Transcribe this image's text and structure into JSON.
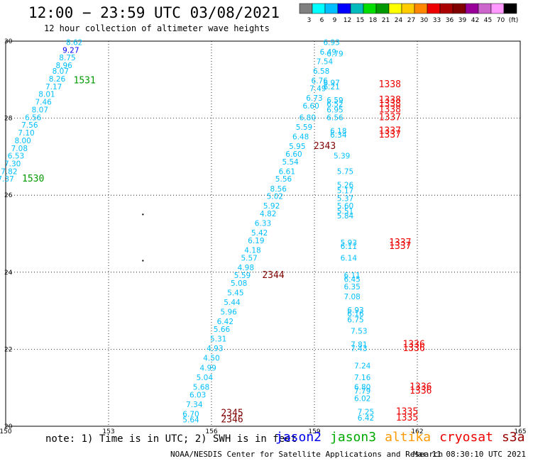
{
  "title": "12:00 − 23:59 UTC 03/08/2021",
  "subtitle": "12 hour collection of altimeter wave heights",
  "note": "note: 1) Time is in UTC; 2) SWH is in feet",
  "credit": "NOAA/NESDIS Center for Satellite Applications and Research",
  "timestamp": "Mar 11 08:30:10 UTC 2021",
  "satellites": [
    {
      "name": "jason2",
      "color": "#0000ee"
    },
    {
      "name": "jason3",
      "color": "#00aa00"
    },
    {
      "name": "altika",
      "color": "#ff9900"
    },
    {
      "name": "cryosat",
      "color": "#ee0000"
    },
    {
      "name": "s3a",
      "color": "#990000"
    }
  ],
  "legend": {
    "colors": [
      "#808080",
      "#00ffff",
      "#00bfff",
      "#0000ff",
      "#00bbbb",
      "#00dd00",
      "#009900",
      "#ffff00",
      "#ffcc00",
      "#ff8800",
      "#ee0000",
      "#aa0000",
      "#800000",
      "#990099",
      "#cc66cc",
      "#ff99ff",
      "#000000"
    ],
    "labels": [
      "3",
      "6",
      "9",
      "12",
      "15",
      "18",
      "21",
      "24",
      "27",
      "30",
      "33",
      "36",
      "39",
      "42",
      "45",
      "70",
      "(ft)"
    ]
  },
  "chart_data": {
    "type": "scatter",
    "xlabel": "",
    "ylabel": "",
    "xlim": [
      150,
      165
    ],
    "ylim": [
      20,
      30
    ],
    "xticks": [
      "150",
      "153",
      "156",
      "159",
      "162",
      "165"
    ],
    "yticks": [
      "20",
      "22",
      "24",
      "26",
      "28",
      "30"
    ],
    "grid": true,
    "swh_points": [
      {
        "x": 152.0,
        "y": 29.9,
        "v": "8.62",
        "c": "#00bfff"
      },
      {
        "x": 151.9,
        "y": 29.7,
        "v": "9.27",
        "c": "#0000ff"
      },
      {
        "x": 151.8,
        "y": 29.5,
        "v": "8.75",
        "c": "#00bfff"
      },
      {
        "x": 151.7,
        "y": 29.3,
        "v": "8.96",
        "c": "#00bfff"
      },
      {
        "x": 151.6,
        "y": 29.15,
        "v": "8.07",
        "c": "#00bfff"
      },
      {
        "x": 151.5,
        "y": 28.95,
        "v": "8.26",
        "c": "#00bfff"
      },
      {
        "x": 151.4,
        "y": 28.75,
        "v": "7.17",
        "c": "#00bfff"
      },
      {
        "x": 151.2,
        "y": 28.55,
        "v": "8.01",
        "c": "#00bfff"
      },
      {
        "x": 151.1,
        "y": 28.35,
        "v": "7.46",
        "c": "#00bfff"
      },
      {
        "x": 151.0,
        "y": 28.15,
        "v": "8.07",
        "c": "#00bfff"
      },
      {
        "x": 150.8,
        "y": 27.95,
        "v": "6.56",
        "c": "#00bfff"
      },
      {
        "x": 150.7,
        "y": 27.75,
        "v": "7.56",
        "c": "#00bfff"
      },
      {
        "x": 150.6,
        "y": 27.55,
        "v": "7.10",
        "c": "#00bfff"
      },
      {
        "x": 150.5,
        "y": 27.35,
        "v": "8.00",
        "c": "#00bfff"
      },
      {
        "x": 150.4,
        "y": 27.15,
        "v": "7.08",
        "c": "#00bfff"
      },
      {
        "x": 150.3,
        "y": 26.95,
        "v": "6.53",
        "c": "#00bfff"
      },
      {
        "x": 150.2,
        "y": 26.75,
        "v": "7.30",
        "c": "#00bfff"
      },
      {
        "x": 150.1,
        "y": 26.55,
        "v": "7.82",
        "c": "#00bfff"
      },
      {
        "x": 150.0,
        "y": 26.35,
        "v": "7.37",
        "c": "#00bfff"
      },
      {
        "x": 159.5,
        "y": 29.9,
        "v": "6.93",
        "c": "#00bfff"
      },
      {
        "x": 159.4,
        "y": 29.65,
        "v": "6.49",
        "c": "#00bfff"
      },
      {
        "x": 159.6,
        "y": 29.6,
        "v": "6.79",
        "c": "#00bfff"
      },
      {
        "x": 159.3,
        "y": 29.4,
        "v": "7.54",
        "c": "#00bfff"
      },
      {
        "x": 159.2,
        "y": 29.15,
        "v": "6.58",
        "c": "#00bfff"
      },
      {
        "x": 159.15,
        "y": 28.9,
        "v": "6.76",
        "c": "#00bfff"
      },
      {
        "x": 159.5,
        "y": 28.85,
        "v": "6.97",
        "c": "#00bfff"
      },
      {
        "x": 159.5,
        "y": 28.75,
        "v": "6.21",
        "c": "#00bfff"
      },
      {
        "x": 159.1,
        "y": 28.7,
        "v": "7.49",
        "c": "#00bfff"
      },
      {
        "x": 159.0,
        "y": 28.45,
        "v": "6.73",
        "c": "#00bfff"
      },
      {
        "x": 159.6,
        "y": 28.4,
        "v": "6.59",
        "c": "#00bfff"
      },
      {
        "x": 159.6,
        "y": 28.3,
        "v": "6.52",
        "c": "#00bfff"
      },
      {
        "x": 158.9,
        "y": 28.25,
        "v": "6.60",
        "c": "#00bfff"
      },
      {
        "x": 159.6,
        "y": 28.15,
        "v": "6.95",
        "c": "#00bfff"
      },
      {
        "x": 158.8,
        "y": 27.95,
        "v": "6.80",
        "c": "#00bfff"
      },
      {
        "x": 159.6,
        "y": 27.95,
        "v": "6.56",
        "c": "#00bfff"
      },
      {
        "x": 158.7,
        "y": 27.7,
        "v": "5.59",
        "c": "#00bfff"
      },
      {
        "x": 159.7,
        "y": 27.6,
        "v": "6.18",
        "c": "#00bfff"
      },
      {
        "x": 159.7,
        "y": 27.5,
        "v": "6.34",
        "c": "#00bfff"
      },
      {
        "x": 158.6,
        "y": 27.45,
        "v": "6.48",
        "c": "#00bfff"
      },
      {
        "x": 158.5,
        "y": 27.2,
        "v": "5.95",
        "c": "#00bfff"
      },
      {
        "x": 158.4,
        "y": 27.0,
        "v": "6.60",
        "c": "#00bfff"
      },
      {
        "x": 159.8,
        "y": 26.95,
        "v": "5.39",
        "c": "#00bfff"
      },
      {
        "x": 158.3,
        "y": 26.8,
        "v": "5.54",
        "c": "#00bfff"
      },
      {
        "x": 158.2,
        "y": 26.55,
        "v": "6.61",
        "c": "#00bfff"
      },
      {
        "x": 159.9,
        "y": 26.55,
        "v": "5.75",
        "c": "#00bfff"
      },
      {
        "x": 158.1,
        "y": 26.35,
        "v": "5.56",
        "c": "#00bfff"
      },
      {
        "x": 157.95,
        "y": 26.1,
        "v": "8.56",
        "c": "#00bfff"
      },
      {
        "x": 159.9,
        "y": 26.2,
        "v": "5.26",
        "c": "#00bfff"
      },
      {
        "x": 159.9,
        "y": 26.05,
        "v": "5.17",
        "c": "#00bfff"
      },
      {
        "x": 157.85,
        "y": 25.9,
        "v": "5.02",
        "c": "#00bfff"
      },
      {
        "x": 159.9,
        "y": 25.85,
        "v": "5.37",
        "c": "#00bfff"
      },
      {
        "x": 157.75,
        "y": 25.65,
        "v": "5.92",
        "c": "#00bfff"
      },
      {
        "x": 159.9,
        "y": 25.65,
        "v": "5.60",
        "c": "#00bfff"
      },
      {
        "x": 159.9,
        "y": 25.52,
        "v": "5.51",
        "c": "#00bfff"
      },
      {
        "x": 157.65,
        "y": 25.45,
        "v": "4.82",
        "c": "#00bfff"
      },
      {
        "x": 159.9,
        "y": 25.4,
        "v": "5.84",
        "c": "#00bfff"
      },
      {
        "x": 157.5,
        "y": 25.2,
        "v": "6.33",
        "c": "#00bfff"
      },
      {
        "x": 157.4,
        "y": 24.95,
        "v": "5.42",
        "c": "#00bfff"
      },
      {
        "x": 157.3,
        "y": 24.75,
        "v": "6.19",
        "c": "#00bfff"
      },
      {
        "x": 160.0,
        "y": 24.7,
        "v": "5.93",
        "c": "#00bfff"
      },
      {
        "x": 160.0,
        "y": 24.6,
        "v": "6.11",
        "c": "#00bfff"
      },
      {
        "x": 157.2,
        "y": 24.5,
        "v": "4.18",
        "c": "#00bfff"
      },
      {
        "x": 157.1,
        "y": 24.3,
        "v": "5.57",
        "c": "#00bfff"
      },
      {
        "x": 160.0,
        "y": 24.3,
        "v": "6.14",
        "c": "#00bfff"
      },
      {
        "x": 157.0,
        "y": 24.05,
        "v": "4.98",
        "c": "#00bfff"
      },
      {
        "x": 160.1,
        "y": 23.85,
        "v": "6.11",
        "c": "#00bfff"
      },
      {
        "x": 156.9,
        "y": 23.85,
        "v": "5.59",
        "c": "#00bfff"
      },
      {
        "x": 160.1,
        "y": 23.75,
        "v": "6.45",
        "c": "#00bfff"
      },
      {
        "x": 156.8,
        "y": 23.65,
        "v": "5.08",
        "c": "#00bfff"
      },
      {
        "x": 160.1,
        "y": 23.55,
        "v": "6.35",
        "c": "#00bfff"
      },
      {
        "x": 156.7,
        "y": 23.4,
        "v": "5.45",
        "c": "#00bfff"
      },
      {
        "x": 160.1,
        "y": 23.3,
        "v": "7.08",
        "c": "#00bfff"
      },
      {
        "x": 156.6,
        "y": 23.15,
        "v": "5.44",
        "c": "#00bfff"
      },
      {
        "x": 160.2,
        "y": 22.95,
        "v": "6.93",
        "c": "#00bfff"
      },
      {
        "x": 156.5,
        "y": 22.9,
        "v": "5.96",
        "c": "#00bfff"
      },
      {
        "x": 160.2,
        "y": 22.85,
        "v": "6.16",
        "c": "#00bfff"
      },
      {
        "x": 160.2,
        "y": 22.7,
        "v": "6.75",
        "c": "#00bfff"
      },
      {
        "x": 156.4,
        "y": 22.65,
        "v": "6.42",
        "c": "#00bfff"
      },
      {
        "x": 156.3,
        "y": 22.45,
        "v": "5.66",
        "c": "#00bfff"
      },
      {
        "x": 160.3,
        "y": 22.4,
        "v": "7.53",
        "c": "#00bfff"
      },
      {
        "x": 156.2,
        "y": 22.2,
        "v": "5.31",
        "c": "#00bfff"
      },
      {
        "x": 160.3,
        "y": 22.05,
        "v": "7.81",
        "c": "#00bfff"
      },
      {
        "x": 156.1,
        "y": 21.95,
        "v": "4.93",
        "c": "#00bfff"
      },
      {
        "x": 160.3,
        "y": 21.95,
        "v": "7.43",
        "c": "#00bfff"
      },
      {
        "x": 156.0,
        "y": 21.7,
        "v": "4.50",
        "c": "#00bfff"
      },
      {
        "x": 160.4,
        "y": 21.5,
        "v": "7.24",
        "c": "#00bfff"
      },
      {
        "x": 155.9,
        "y": 21.45,
        "v": "4.99",
        "c": "#00bfff"
      },
      {
        "x": 160.4,
        "y": 21.2,
        "v": "7.16",
        "c": "#00bfff"
      },
      {
        "x": 155.8,
        "y": 21.2,
        "v": "5.04",
        "c": "#00bfff"
      },
      {
        "x": 160.4,
        "y": 20.95,
        "v": "6.80",
        "c": "#00bfff"
      },
      {
        "x": 155.7,
        "y": 20.95,
        "v": "5.68",
        "c": "#00bfff"
      },
      {
        "x": 160.4,
        "y": 20.85,
        "v": "7.79",
        "c": "#00bfff"
      },
      {
        "x": 155.6,
        "y": 20.75,
        "v": "6.03",
        "c": "#00bfff"
      },
      {
        "x": 160.4,
        "y": 20.65,
        "v": "6.02",
        "c": "#00bfff"
      },
      {
        "x": 155.5,
        "y": 20.5,
        "v": "7.34",
        "c": "#00bfff"
      },
      {
        "x": 155.4,
        "y": 20.25,
        "v": "6.70",
        "c": "#00bfff"
      },
      {
        "x": 160.5,
        "y": 20.3,
        "v": "7.25",
        "c": "#00bfff"
      },
      {
        "x": 155.4,
        "y": 20.1,
        "v": "5.64",
        "c": "#00bfff"
      },
      {
        "x": 160.5,
        "y": 20.15,
        "v": "6.42",
        "c": "#00bfff"
      }
    ],
    "time_labels": [
      {
        "x": 152.3,
        "y": 28.9,
        "t": "1531",
        "c": "#009900"
      },
      {
        "x": 150.8,
        "y": 26.35,
        "t": "1530",
        "c": "#009900"
      },
      {
        "x": 161.2,
        "y": 28.8,
        "t": "1338",
        "c": "#ee0000"
      },
      {
        "x": 161.2,
        "y": 28.4,
        "t": "1338",
        "c": "#ee0000"
      },
      {
        "x": 161.2,
        "y": 28.3,
        "t": "1338",
        "c": "#ee0000"
      },
      {
        "x": 161.2,
        "y": 28.15,
        "t": "1338",
        "c": "#ee0000"
      },
      {
        "x": 161.2,
        "y": 27.95,
        "t": "1337",
        "c": "#ee0000"
      },
      {
        "x": 161.2,
        "y": 27.6,
        "t": "1337",
        "c": "#ee0000"
      },
      {
        "x": 161.2,
        "y": 27.5,
        "t": "1337",
        "c": "#ee0000"
      },
      {
        "x": 159.3,
        "y": 27.2,
        "t": "2343",
        "c": "#800000"
      },
      {
        "x": 161.5,
        "y": 24.7,
        "t": "1337",
        "c": "#ee0000"
      },
      {
        "x": 161.5,
        "y": 24.6,
        "t": "1337",
        "c": "#ee0000"
      },
      {
        "x": 157.8,
        "y": 23.85,
        "t": "2344",
        "c": "#800000"
      },
      {
        "x": 161.9,
        "y": 22.05,
        "t": "1336",
        "c": "#ee0000"
      },
      {
        "x": 161.9,
        "y": 21.95,
        "t": "1336",
        "c": "#ee0000"
      },
      {
        "x": 162.1,
        "y": 20.95,
        "t": "1336",
        "c": "#ee0000"
      },
      {
        "x": 162.1,
        "y": 20.85,
        "t": "1336",
        "c": "#ee0000"
      },
      {
        "x": 161.7,
        "y": 20.3,
        "t": "1335",
        "c": "#ee0000"
      },
      {
        "x": 161.7,
        "y": 20.15,
        "t": "1335",
        "c": "#ee0000"
      },
      {
        "x": 156.6,
        "y": 20.27,
        "t": "2345",
        "c": "#800000"
      },
      {
        "x": 156.6,
        "y": 20.1,
        "t": "2346",
        "c": "#800000"
      }
    ],
    "dots": [
      {
        "x": 154.0,
        "y": 25.5
      },
      {
        "x": 154.0,
        "y": 24.3
      }
    ]
  }
}
